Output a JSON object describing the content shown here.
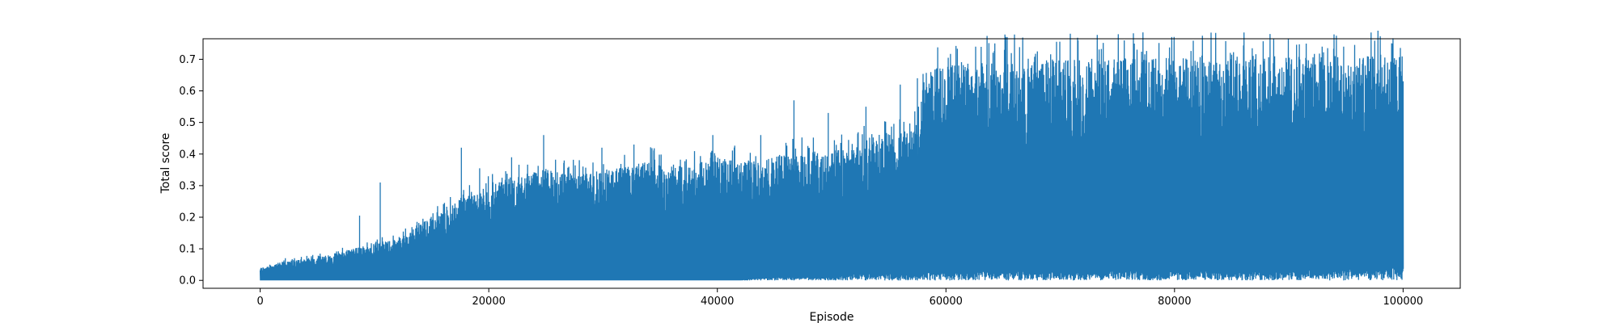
{
  "chart_data": {
    "type": "line",
    "title": "",
    "xlabel": "Episode",
    "ylabel": "Total score",
    "xlim": [
      -5000,
      105000
    ],
    "ylim": [
      -0.025,
      0.765
    ],
    "x_ticks": [
      0,
      20000,
      40000,
      60000,
      80000,
      100000
    ],
    "x_tick_labels": [
      "0",
      "20000",
      "40000",
      "60000",
      "80000",
      "100000"
    ],
    "y_ticks": [
      0.0,
      0.1,
      0.2,
      0.3,
      0.4,
      0.5,
      0.6,
      0.7
    ],
    "y_tick_labels": [
      "0.0",
      "0.1",
      "0.2",
      "0.3",
      "0.4",
      "0.5",
      "0.6",
      "0.7"
    ],
    "grid": false,
    "series": [
      {
        "name": "Total score",
        "color": "#1f77b4",
        "n_episodes": 100000,
        "envelope": {
          "x": [
            0,
            2000,
            4000,
            6000,
            8000,
            10000,
            12000,
            14000,
            16000,
            18000,
            20000,
            22000,
            24000,
            26000,
            28000,
            30000,
            32000,
            34000,
            36000,
            38000,
            40000,
            42000,
            44000,
            46000,
            48000,
            50000,
            52000,
            54000,
            56000,
            57800,
            58000,
            60000,
            70000,
            80000,
            90000,
            100000
          ],
          "upper": [
            0.04,
            0.06,
            0.07,
            0.08,
            0.1,
            0.12,
            0.13,
            0.18,
            0.22,
            0.27,
            0.3,
            0.33,
            0.35,
            0.35,
            0.34,
            0.35,
            0.36,
            0.38,
            0.36,
            0.37,
            0.39,
            0.38,
            0.38,
            0.4,
            0.41,
            0.41,
            0.42,
            0.46,
            0.47,
            0.5,
            0.66,
            0.69,
            0.7,
            0.71,
            0.71,
            0.71
          ],
          "lower": [
            0.0,
            0.0,
            0.0,
            0.0,
            0.0,
            0.0,
            0.0,
            0.0,
            0.0,
            0.0,
            0.0,
            0.0,
            0.0,
            0.0,
            0.0,
            0.0,
            0.0,
            0.0,
            0.0,
            0.0,
            0.0,
            0.0,
            0.01,
            0.01,
            0.01,
            0.01,
            0.02,
            0.02,
            0.02,
            0.02,
            0.03,
            0.03,
            0.03,
            0.03,
            0.03,
            0.04
          ]
        },
        "spikes": [
          {
            "x": 800,
            "y": 0.04
          },
          {
            "x": 2200,
            "y": 0.07
          },
          {
            "x": 3000,
            "y": 0.07
          },
          {
            "x": 8700,
            "y": 0.205
          },
          {
            "x": 10500,
            "y": 0.31
          },
          {
            "x": 17600,
            "y": 0.42
          },
          {
            "x": 19200,
            "y": 0.355
          },
          {
            "x": 22000,
            "y": 0.39
          },
          {
            "x": 24800,
            "y": 0.46
          },
          {
            "x": 29900,
            "y": 0.42
          },
          {
            "x": 32700,
            "y": 0.43
          },
          {
            "x": 39600,
            "y": 0.46
          },
          {
            "x": 43800,
            "y": 0.46
          },
          {
            "x": 46700,
            "y": 0.57
          },
          {
            "x": 49700,
            "y": 0.53
          },
          {
            "x": 53000,
            "y": 0.55
          },
          {
            "x": 56000,
            "y": 0.62
          },
          {
            "x": 57500,
            "y": 0.64
          },
          {
            "x": 68000,
            "y": 0.725
          },
          {
            "x": 86800,
            "y": 0.735
          },
          {
            "x": 94800,
            "y": 0.74
          }
        ]
      }
    ]
  }
}
